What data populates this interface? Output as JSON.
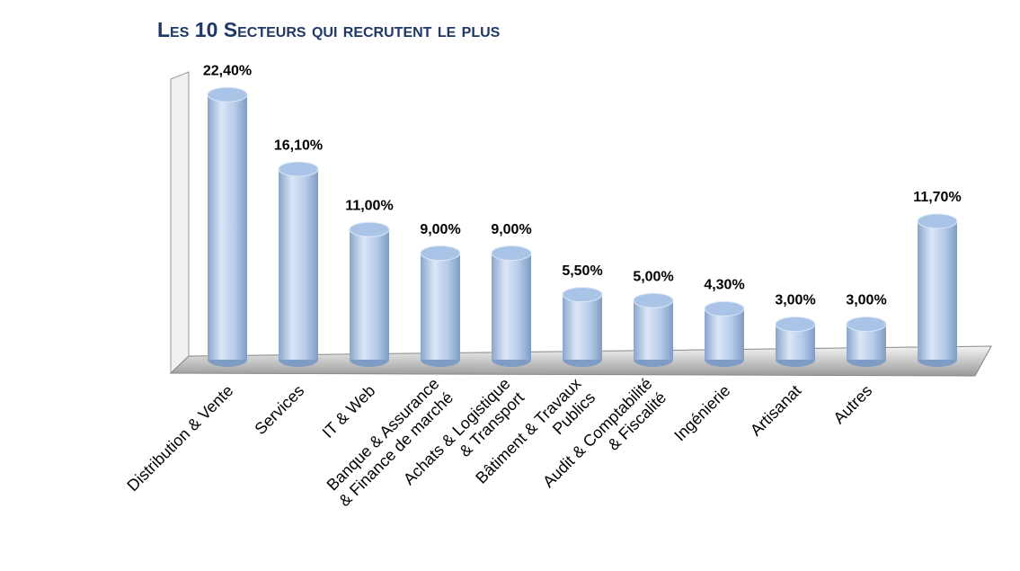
{
  "chart_data": {
    "type": "bar",
    "title": "Les 10 Secteurs qui recrutent le plus",
    "categories": [
      "Distribution & Vente",
      "Services",
      "IT & Web",
      "Banque & Assurance\n& Finance de marché",
      "Achats & Logistique\n& Transport",
      "Bâtiment & Travaux\nPublics",
      "Audit & Comptabilité\n& Fiscalité",
      "Ingénierie",
      "Artisanat",
      "Autres",
      null
    ],
    "values": [
      22.4,
      16.1,
      11,
      9,
      9,
      5.5,
      5,
      4.3,
      3,
      3,
      11.7
    ],
    "value_labels": [
      "22,40%",
      "16,10%",
      "11,00%",
      "9,00%",
      "9,00%",
      "5,50%",
      "5,00%",
      "4,30%",
      "3,00%",
      "3,00%",
      "11,70%"
    ],
    "color": "#a9c4e6",
    "ylim": [
      0,
      25
    ]
  }
}
